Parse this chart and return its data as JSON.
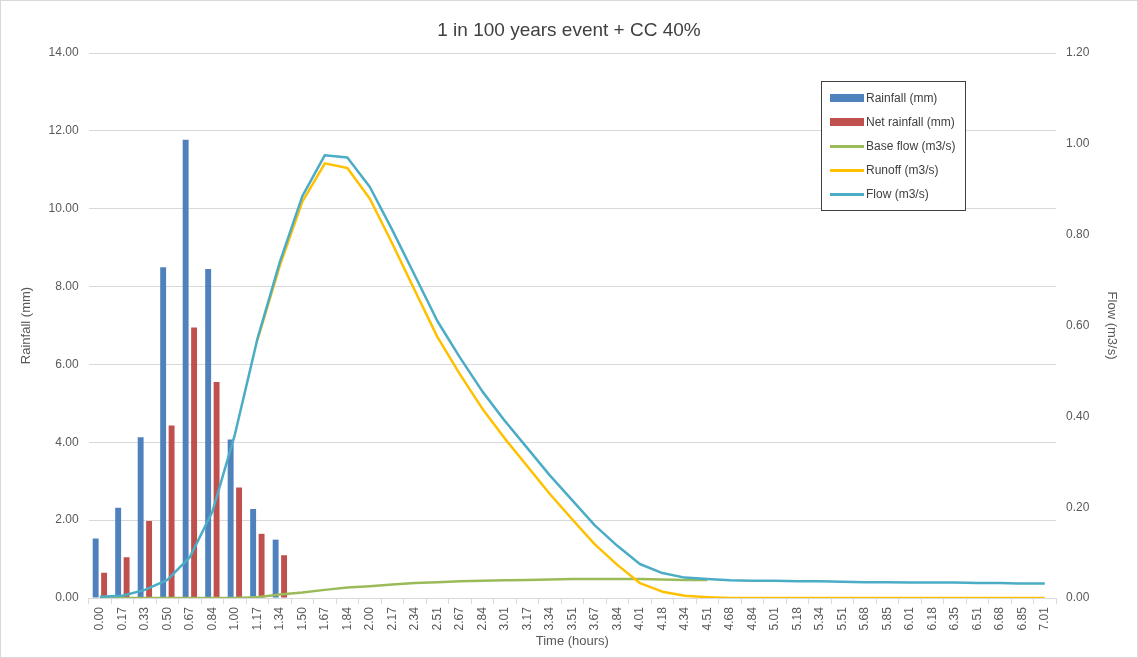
{
  "chart_data": {
    "type": "bar",
    "title": "1 in 100 years event + CC 40%",
    "xlabel": "Time (hours)",
    "ylabel": "Rainfall (mm)",
    "y2label": "Flow (m3/s)",
    "categories": [
      "0.00",
      "0.17",
      "0.33",
      "0.50",
      "0.67",
      "0.84",
      "1.00",
      "1.17",
      "1.34",
      "1.50",
      "1.67",
      "1.84",
      "2.00",
      "2.17",
      "2.34",
      "2.51",
      "2.67",
      "2.84",
      "3.01",
      "3.17",
      "3.34",
      "3.51",
      "3.67",
      "3.84",
      "4.01",
      "4.18",
      "4.34",
      "4.51",
      "4.68",
      "4.84",
      "5.01",
      "5.18",
      "5.34",
      "5.51",
      "5.68",
      "5.85",
      "6.01",
      "6.18",
      "6.35",
      "6.51",
      "6.68",
      "6.85",
      "7.01"
    ],
    "series": [
      {
        "name": "Rainfall (mm)",
        "color": "#4f81bd",
        "values": [
          1.53,
          2.32,
          4.13,
          8.5,
          11.77,
          8.45,
          4.07,
          2.29,
          1.5,
          null,
          null,
          null,
          null,
          null,
          null,
          null,
          null,
          null,
          null,
          null,
          null,
          null,
          null,
          null,
          null,
          null,
          null,
          null,
          null,
          null,
          null,
          null,
          null,
          null,
          null,
          null,
          null,
          null,
          null,
          null,
          null,
          null,
          null
        ]
      },
      {
        "name": "Net rainfall (mm)",
        "color": "#c0504d",
        "values": [
          0.65,
          1.05,
          1.98,
          4.43,
          6.95,
          5.55,
          2.84,
          1.65,
          1.1,
          null,
          null,
          null,
          null,
          null,
          null,
          null,
          null,
          null,
          null,
          null,
          null,
          null,
          null,
          null,
          null,
          null,
          null,
          null,
          null,
          null,
          null,
          null,
          null,
          null,
          null,
          null,
          null,
          null,
          null,
          null,
          null,
          null,
          null
        ]
      },
      {
        "name": "Base flow (m3/s)",
        "type": "line",
        "axis": "y2",
        "color": "#9bbb59",
        "values": [
          0,
          0,
          0,
          0,
          0,
          0,
          0,
          0.002,
          0.008,
          0.012,
          0.018,
          0.023,
          0.026,
          0.03,
          0.033,
          0.035,
          0.037,
          0.038,
          0.039,
          0.04,
          0.041,
          0.042,
          0.042,
          0.042,
          0.042,
          0.041,
          0.04,
          0.04,
          null,
          null,
          null,
          null,
          null,
          null,
          null,
          null,
          null,
          null,
          null,
          null,
          null,
          null,
          null
        ]
      },
      {
        "name": "Runoff (m3/s)",
        "type": "line",
        "axis": "y2",
        "color": "#ffc000",
        "values": [
          null,
          null,
          null,
          null,
          null,
          null,
          null,
          0.568,
          0.732,
          0.873,
          0.957,
          0.947,
          0.879,
          0.78,
          0.677,
          0.575,
          0.493,
          0.417,
          0.351,
          0.29,
          0.229,
          0.173,
          0.118,
          0.073,
          0.033,
          0.014,
          0.005,
          0.002,
          0,
          0,
          0,
          0,
          0,
          0,
          0,
          0,
          0,
          0,
          0,
          0,
          0,
          0,
          0
        ]
      },
      {
        "name": "Flow (m3/s)",
        "type": "line",
        "axis": "y2",
        "color": "#4bacc6",
        "values": [
          0.003,
          0.005,
          0.018,
          0.04,
          0.09,
          0.19,
          0.36,
          0.57,
          0.74,
          0.885,
          0.975,
          0.97,
          0.905,
          0.81,
          0.71,
          0.61,
          0.53,
          0.455,
          0.39,
          0.33,
          0.27,
          0.215,
          0.16,
          0.115,
          0.075,
          0.055,
          0.045,
          0.042,
          0.039,
          0.038,
          0.038,
          0.037,
          0.037,
          0.036,
          0.035,
          0.035,
          0.034,
          0.034,
          0.034,
          0.033,
          0.033,
          0.032,
          0.032
        ]
      }
    ],
    "ylim": [
      0,
      14
    ],
    "yticks": [
      {
        "value": 0,
        "label": "0.00"
      },
      {
        "value": 2,
        "label": "2.00"
      },
      {
        "value": 4,
        "label": "4.00"
      },
      {
        "value": 6,
        "label": "6.00"
      },
      {
        "value": 8,
        "label": "8.00"
      },
      {
        "value": 10,
        "label": "10.00"
      },
      {
        "value": 12,
        "label": "12.00"
      },
      {
        "value": 14,
        "label": "14.00"
      }
    ],
    "y2lim": [
      0,
      1.2
    ],
    "y2ticks": [
      {
        "value": 0,
        "label": "0.00"
      },
      {
        "value": 0.2,
        "label": "0.20"
      },
      {
        "value": 0.4,
        "label": "0.40"
      },
      {
        "value": 0.6,
        "label": "0.60"
      },
      {
        "value": 0.8,
        "label": "0.80"
      },
      {
        "value": 1,
        "label": "1.00"
      },
      {
        "value": 1.2,
        "label": "1.20"
      }
    ],
    "grid": "y",
    "legend": "top right",
    "marker": "none",
    "line_style": "solid"
  }
}
